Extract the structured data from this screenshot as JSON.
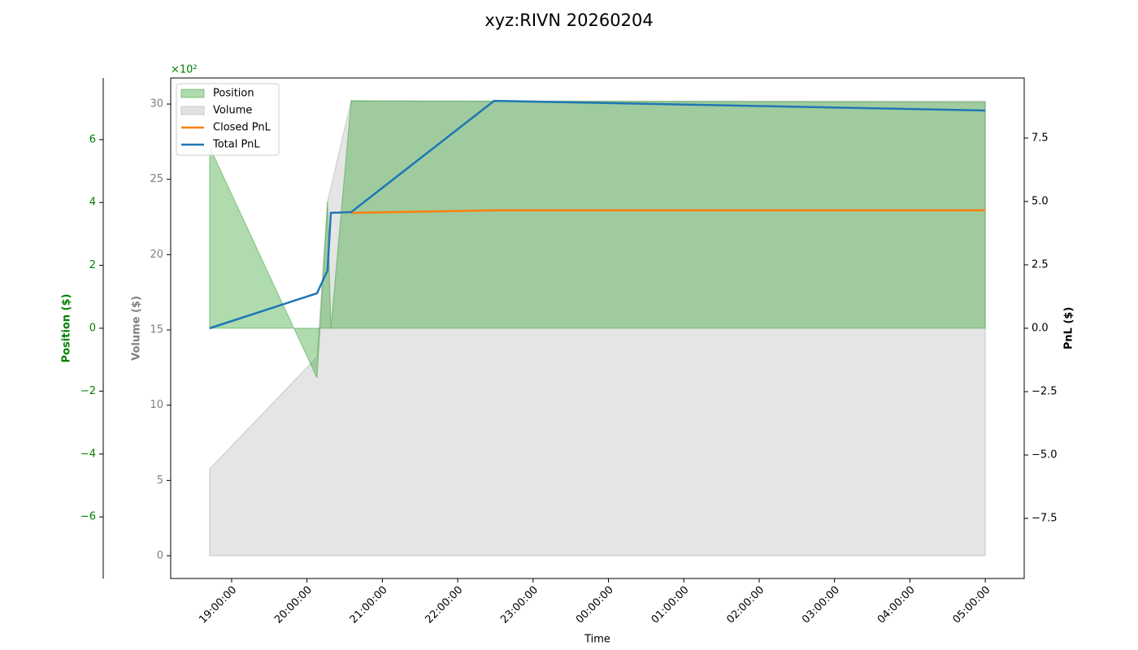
{
  "chart_data": {
    "type": "line",
    "title": "xyz:RIVN 20260204",
    "xlabel": "Time",
    "x": [
      "18:42:30",
      "20:08:00",
      "20:16:20",
      "20:19:00",
      "20:35:10",
      "22:29:00",
      "05:00:00"
    ],
    "xlim": [
      "18:11:30",
      "05:31:00"
    ],
    "xticks": [
      "19:00:00",
      "20:00:00",
      "21:00:00",
      "22:00:00",
      "23:00:00",
      "00:00:00",
      "01:00:00",
      "02:00:00",
      "03:00:00",
      "04:00:00",
      "05:00:00"
    ],
    "axes": [
      {
        "name": "position",
        "label": "Position ($)",
        "color": "#008000",
        "offset_text": "×10²",
        "lim": [
          -7.96,
          7.96
        ],
        "ticks": [
          {
            "value": -6,
            "label": "−6"
          },
          {
            "value": -4,
            "label": "−4"
          },
          {
            "value": -2,
            "label": "−2"
          },
          0,
          2,
          4,
          6
        ]
      },
      {
        "name": "volume",
        "label": "Volume ($)",
        "color": "#808080",
        "lim": [
          -1.51,
          31.73
        ],
        "ticks": [
          0,
          5,
          10,
          15,
          20,
          25,
          30
        ]
      },
      {
        "name": "pnl",
        "label": "PnL ($)",
        "color": "#000000",
        "lim": [
          -9.87,
          9.87
        ],
        "ticks": [
          {
            "value": -7.5,
            "label": "−7.5"
          },
          {
            "value": -5,
            "label": "−5.0"
          },
          {
            "value": -2.5,
            "label": "−2.5"
          },
          {
            "value": 0,
            "label": "0.0"
          },
          {
            "value": 2.5,
            "label": "2.5"
          },
          {
            "value": 5,
            "label": "5.0"
          },
          {
            "value": 7.5,
            "label": "7.5"
          }
        ]
      }
    ],
    "series": [
      {
        "name": "Position",
        "kind": "area",
        "axis": "position",
        "color": "#2ca02c",
        "values": [
          5.77,
          -1.58,
          4.03,
          0,
          7.24,
          7.22,
          7.19
        ]
      },
      {
        "name": "Volume",
        "kind": "area",
        "axis": "volume",
        "color": "#a0a0a0",
        "values": [
          5.77,
          13.2,
          23.5,
          24.45,
          30.2,
          30.2,
          30.2
        ]
      },
      {
        "name": "Closed PnL",
        "kind": "line",
        "axis": "pnl",
        "color": "#ff7f0e",
        "values": [
          null,
          null,
          null,
          null,
          4.55,
          4.65,
          4.65
        ]
      },
      {
        "name": "Total PnL",
        "kind": "line",
        "axis": "pnl",
        "color": "#1f77b4",
        "values": [
          0,
          1.38,
          2.28,
          4.55,
          4.58,
          8.97,
          8.59
        ]
      }
    ],
    "legend": "upper left"
  }
}
